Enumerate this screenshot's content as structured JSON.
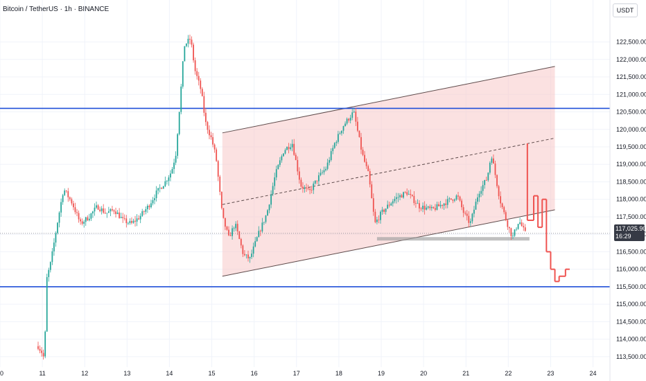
{
  "header": {
    "title": "Bitcoin / TetherUS · 1h · BINANCE"
  },
  "scale_label": "USDT",
  "current_price": {
    "value": "117,025.90",
    "countdown": "16:29",
    "price": 117025.9
  },
  "colors": {
    "up": "#26a69a",
    "down": "#ef5350",
    "hline": "#1e4fd8",
    "channel_fill": "#f8c8c8"
  },
  "chart_data": {
    "type": "candlestick",
    "title": "Bitcoin / TetherUS · 1h · BINANCE",
    "y_unit": "USDT",
    "ylim": [
      113200,
      123700
    ],
    "xlim": [
      10.0,
      24.4
    ],
    "x_ticks": [
      "0",
      "11",
      "12",
      "13",
      "14",
      "15",
      "16",
      "17",
      "18",
      "19",
      "20",
      "21",
      "22",
      "23",
      "24"
    ],
    "y_ticks": [
      "113,500.00",
      "114,000.00",
      "114,500.00",
      "115,000.00",
      "115,500.00",
      "116,000.00",
      "116,500.00",
      "117,000.00",
      "117,500.00",
      "118,000.00",
      "118,500.00",
      "119,000.00",
      "119,500.00",
      "120,000.00",
      "120,500.00",
      "121,000.00",
      "121,500.00",
      "122,000.00",
      "122,500.00"
    ],
    "price_path": [
      [
        10.9,
        113800
      ],
      [
        11.0,
        113600
      ],
      [
        11.05,
        113400
      ],
      [
        11.1,
        115700
      ],
      [
        11.2,
        116200
      ],
      [
        11.35,
        117300
      ],
      [
        11.5,
        118300
      ],
      [
        11.7,
        117900
      ],
      [
        11.9,
        117300
      ],
      [
        12.1,
        117500
      ],
      [
        12.3,
        117800
      ],
      [
        12.5,
        117600
      ],
      [
        12.7,
        117700
      ],
      [
        12.9,
        117400
      ],
      [
        13.1,
        117300
      ],
      [
        13.3,
        117500
      ],
      [
        13.5,
        117800
      ],
      [
        13.7,
        118200
      ],
      [
        13.9,
        118500
      ],
      [
        14.05,
        118800
      ],
      [
        14.15,
        119300
      ],
      [
        14.25,
        120800
      ],
      [
        14.35,
        122400
      ],
      [
        14.5,
        122600
      ],
      [
        14.6,
        121700
      ],
      [
        14.75,
        121100
      ],
      [
        14.85,
        120200
      ],
      [
        15.0,
        119700
      ],
      [
        15.1,
        119200
      ],
      [
        15.25,
        117500
      ],
      [
        15.4,
        116900
      ],
      [
        15.55,
        117300
      ],
      [
        15.75,
        116400
      ],
      [
        15.9,
        116300
      ],
      [
        16.1,
        117000
      ],
      [
        16.3,
        117600
      ],
      [
        16.5,
        118700
      ],
      [
        16.7,
        119400
      ],
      [
        16.9,
        119600
      ],
      [
        17.1,
        118400
      ],
      [
        17.3,
        118200
      ],
      [
        17.5,
        118600
      ],
      [
        17.7,
        118900
      ],
      [
        17.9,
        119600
      ],
      [
        18.1,
        120100
      ],
      [
        18.35,
        120500
      ],
      [
        18.55,
        119300
      ],
      [
        18.7,
        118700
      ],
      [
        18.85,
        117300
      ],
      [
        19.0,
        117600
      ],
      [
        19.3,
        118000
      ],
      [
        19.6,
        118200
      ],
      [
        19.9,
        117800
      ],
      [
        20.2,
        117700
      ],
      [
        20.5,
        117900
      ],
      [
        20.8,
        118100
      ],
      [
        20.95,
        117600
      ],
      [
        21.1,
        117300
      ],
      [
        21.3,
        118200
      ],
      [
        21.5,
        118600
      ],
      [
        21.6,
        119300
      ],
      [
        21.8,
        118000
      ],
      [
        21.95,
        117400
      ],
      [
        22.1,
        116900
      ],
      [
        22.25,
        117400
      ],
      [
        22.4,
        117026
      ]
    ],
    "projection_path": [
      [
        22.45,
        119600
      ],
      [
        22.6,
        117400
      ],
      [
        22.7,
        118100
      ],
      [
        22.8,
        117200
      ],
      [
        22.9,
        118000
      ],
      [
        23.0,
        116500
      ],
      [
        23.1,
        116000
      ],
      [
        23.2,
        115650
      ],
      [
        23.35,
        115800
      ],
      [
        23.45,
        116000
      ]
    ],
    "horizontal_lines": [
      120600,
      115500
    ],
    "channel": {
      "x_start": 15.25,
      "x_end": 23.1,
      "upper_start": 119900,
      "upper_end": 121800,
      "lower_start": 115800,
      "lower_end": 117700
    },
    "support_zone": {
      "x_start": 18.9,
      "x_end": 22.5,
      "price_low": 116840,
      "price_high": 116920
    }
  }
}
